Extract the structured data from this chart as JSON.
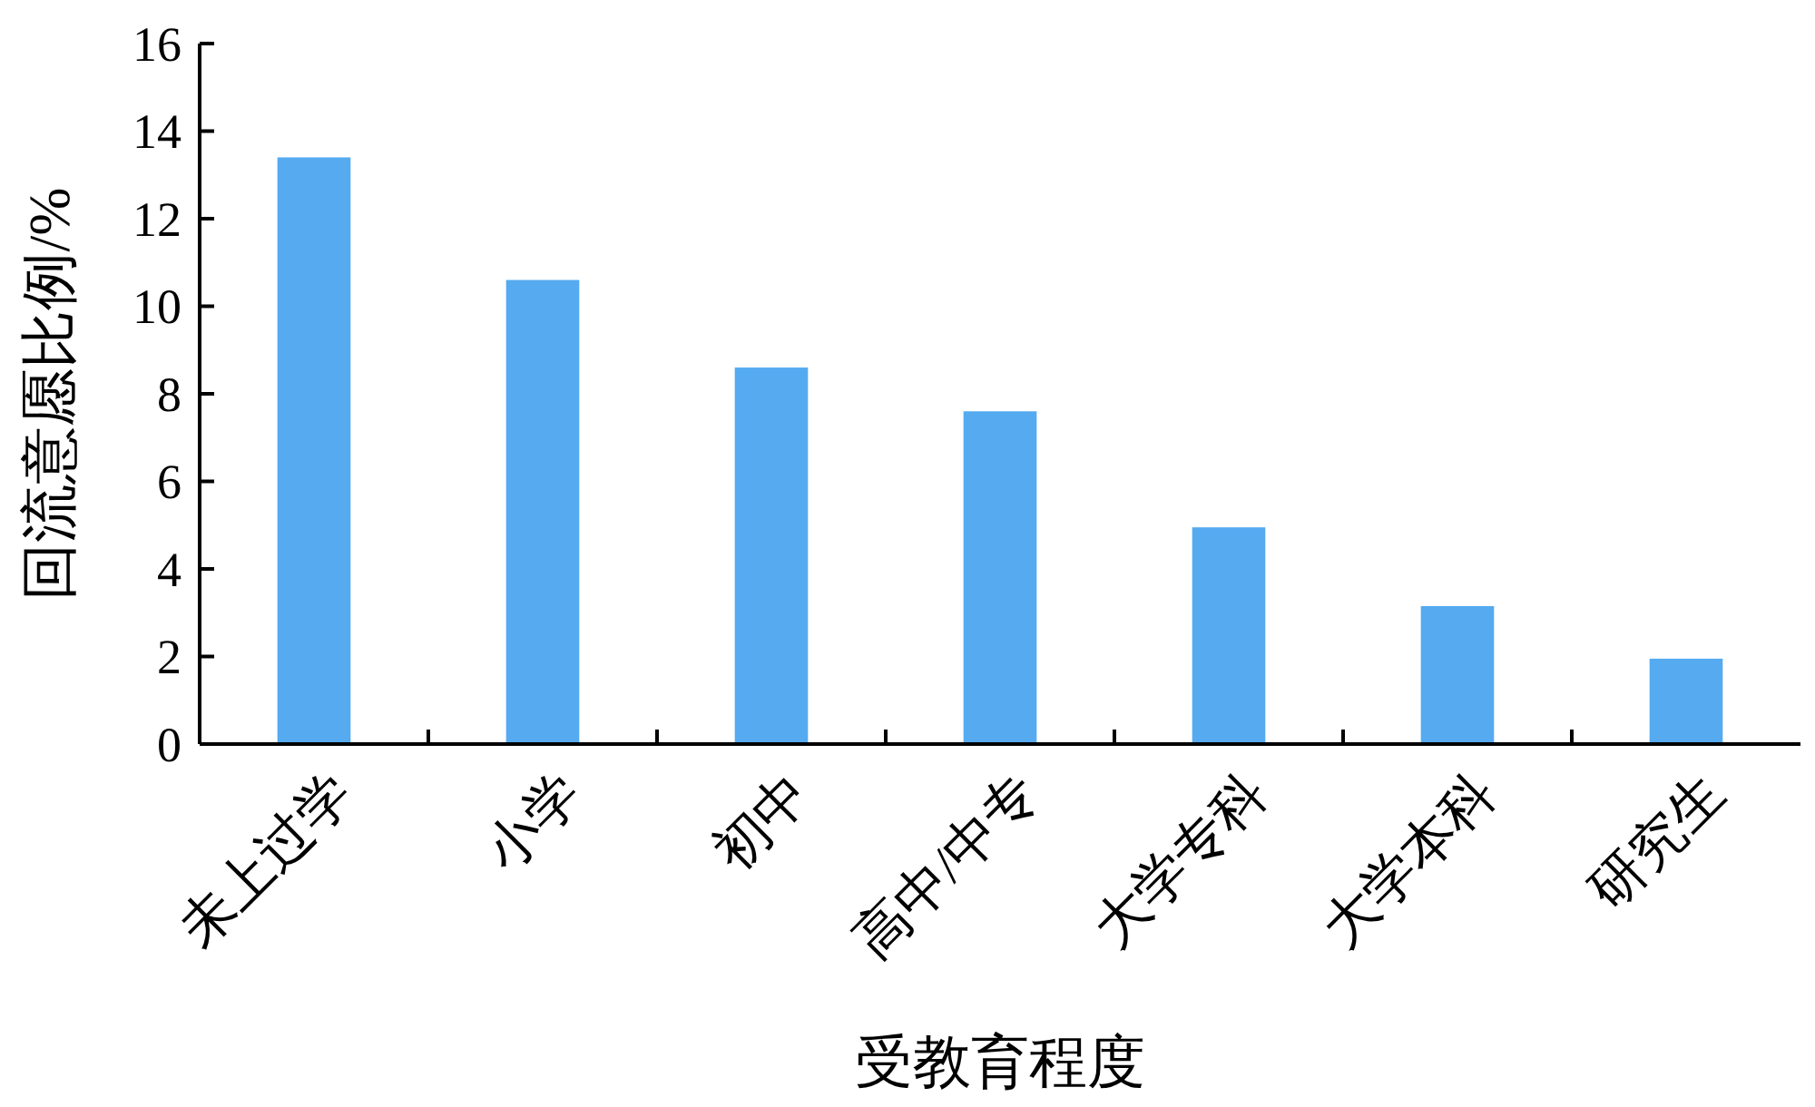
{
  "chart_data": {
    "type": "bar",
    "xlabel": "受教育程度",
    "ylabel": "回流意愿比例/%",
    "categories": [
      "未上过学",
      "小学",
      "初中",
      "高中/中专",
      "大学专科",
      "大学本科",
      "研究生"
    ],
    "values": [
      13.4,
      10.6,
      8.6,
      7.6,
      4.95,
      3.15,
      1.95
    ],
    "color": "#55aaf0",
    "ylim": [
      0,
      16
    ],
    "yticks": [
      0,
      2,
      4,
      6,
      8,
      10,
      12,
      14,
      16
    ],
    "grid": false
  }
}
